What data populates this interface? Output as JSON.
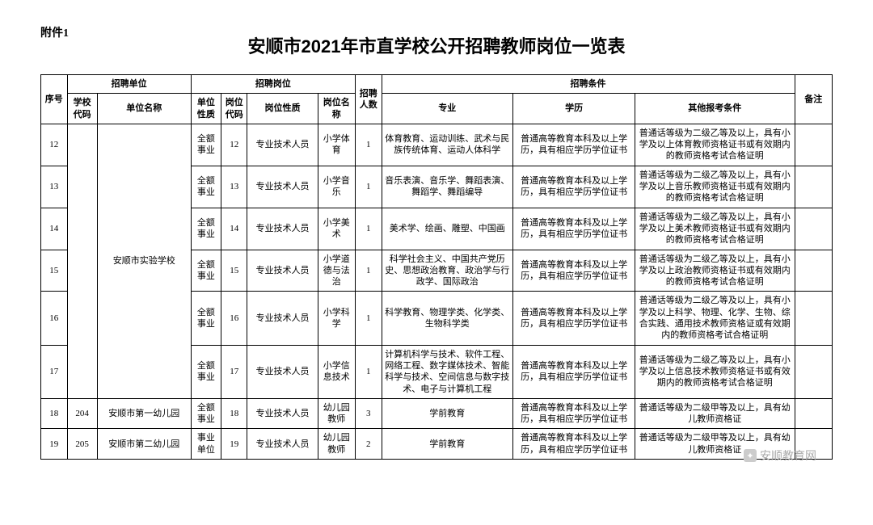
{
  "attachment_label": "附件1",
  "title": "安顺市2021年市直学校公开招聘教师岗位一览表",
  "header": {
    "seq": "序号",
    "unit_group": "招聘单位",
    "school_code": "学校代码",
    "school_name": "单位名称",
    "position_group": "招聘岗位",
    "unit_type": "单位性质",
    "position_code": "岗位代码",
    "position_nature": "岗位性质",
    "position_name": "岗位名称",
    "count": "招聘人数",
    "condition_group": "招聘条件",
    "major": "专业",
    "education": "学历",
    "other": "其他报考条件",
    "note": "备注"
  },
  "school_group_name": "安顺市实验学校",
  "rows": [
    {
      "seq": "12",
      "school_code": "",
      "unit_type": "全额事业",
      "position_code": "12",
      "position_nature": "专业技术人员",
      "position_name": "小学体育",
      "count": "1",
      "major": "体育教育、运动训练、武术与民族传统体育、运动人体科学",
      "education": "普通高等教育本科及以上学历，具有相应学历学位证书",
      "other": "普通话等级为二级乙等及以上，具有小学及以上体育教师资格证书或有效期内的教师资格考试合格证明",
      "note": ""
    },
    {
      "seq": "13",
      "school_code": "",
      "unit_type": "全额事业",
      "position_code": "13",
      "position_nature": "专业技术人员",
      "position_name": "小学音乐",
      "count": "1",
      "major": "音乐表演、音乐学、舞蹈表演、舞蹈学、舞蹈编导",
      "education": "普通高等教育本科及以上学历，具有相应学历学位证书",
      "other": "普通话等级为二级乙等及以上，具有小学及以上音乐教师资格证书或有效期内的教师资格考试合格证明",
      "note": ""
    },
    {
      "seq": "14",
      "school_code": "",
      "unit_type": "全额事业",
      "position_code": "14",
      "position_nature": "专业技术人员",
      "position_name": "小学美术",
      "count": "1",
      "major": "美术学、绘画、雕塑、中国画",
      "education": "普通高等教育本科及以上学历，具有相应学历学位证书",
      "other": "普通话等级为二级乙等及以上，具有小学及以上美术教师资格证书或有效期内的教师资格考试合格证明",
      "note": ""
    },
    {
      "seq": "15",
      "school_code": "",
      "unit_type": "全额事业",
      "position_code": "15",
      "position_nature": "专业技术人员",
      "position_name": "小学道德与法治",
      "count": "1",
      "major": "科学社会主义、中国共产党历史、思想政治教育、政治学与行政学、国际政治",
      "education": "普通高等教育本科及以上学历，具有相应学历学位证书",
      "other": "普通话等级为二级乙等及以上，具有小学及以上政治教师资格证书或有效期内的教师资格考试合格证明",
      "note": ""
    },
    {
      "seq": "16",
      "school_code": "",
      "unit_type": "全额事业",
      "position_code": "16",
      "position_nature": "专业技术人员",
      "position_name": "小学科学",
      "count": "1",
      "major": "科学教育、物理学类、化学类、生物科学类",
      "education": "普通高等教育本科及以上学历，具有相应学历学位证书",
      "other": "普通话等级为二级乙等及以上，具有小学及以上科学、物理、化学、生物、综合实践、通用技术教师资格证或有效期内的教师资格考试合格证明",
      "note": ""
    },
    {
      "seq": "17",
      "school_code": "",
      "unit_type": "全额事业",
      "position_code": "17",
      "position_nature": "专业技术人员",
      "position_name": "小学信息技术",
      "count": "1",
      "major": "计算机科学与技术、软件工程、网络工程、数字媒体技术、智能科学与技术、空间信息与数字技术、电子与计算机工程",
      "education": "普通高等教育本科及以上学历，具有相应学历学位证书",
      "other": "普通话等级为二级乙等及以上，具有小学及以上信息技术教师资格证书或有效期内的教师资格考试合格证明",
      "note": ""
    },
    {
      "seq": "18",
      "school_code": "204",
      "school_name": "安顺市第一幼儿园",
      "unit_type": "全额事业",
      "position_code": "18",
      "position_nature": "专业技术人员",
      "position_name": "幼儿园教师",
      "count": "3",
      "major": "学前教育",
      "education": "普通高等教育本科及以上学历，具有相应学历学位证书",
      "other": "普通话等级为二级甲等及以上，具有幼儿教师资格证",
      "note": ""
    },
    {
      "seq": "19",
      "school_code": "205",
      "school_name": "安顺市第二幼儿园",
      "unit_type": "事业单位",
      "position_code": "19",
      "position_nature": "专业技术人员",
      "position_name": "幼儿园教师",
      "count": "2",
      "major": "学前教育",
      "education": "普通高等教育本科及以上学历，具有相应学历学位证书",
      "other": "普通话等级为二级甲等及以上，具有幼儿教师资格证",
      "note": ""
    }
  ],
  "watermark": "安顺教育网",
  "colors": {
    "text": "#000000",
    "border": "#000000",
    "watermark": "#aaaaaa",
    "background": "#ffffff"
  }
}
